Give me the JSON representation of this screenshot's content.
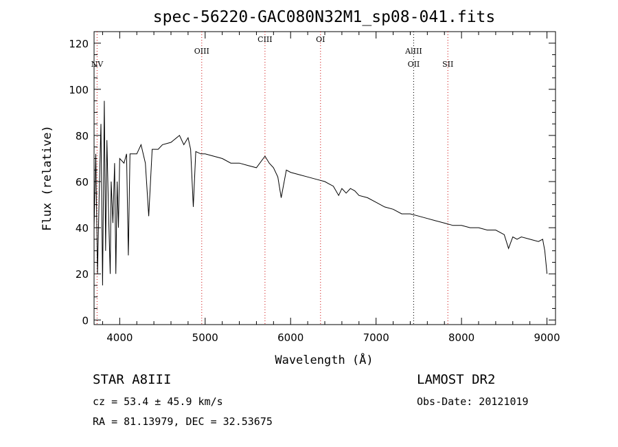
{
  "chart_data": {
    "type": "line",
    "title": "spec-56220-GAC080N32M1_sp08-041.fits",
    "xlabel": "Wavelength (Å)",
    "ylabel": "Flux (relative)",
    "xlim": [
      3700,
      9100
    ],
    "ylim": [
      -2,
      125
    ],
    "xticks": [
      4000,
      5000,
      6000,
      7000,
      8000,
      9000
    ],
    "yticks": [
      0,
      20,
      40,
      60,
      80,
      100,
      120
    ],
    "grid": false,
    "series": [
      {
        "x": [
          3700,
          3720,
          3740,
          3760,
          3780,
          3800,
          3820,
          3835,
          3850,
          3870,
          3889,
          3900,
          3920,
          3940,
          3955,
          3970,
          3985,
          4000,
          4050,
          4080,
          4101,
          4120,
          4200,
          4250,
          4300,
          4340,
          4380,
          4450,
          4500,
          4600,
          4700,
          4750,
          4800,
          4830,
          4861,
          4890,
          4950,
          5000,
          5100,
          5200,
          5300,
          5400,
          5500,
          5600,
          5700,
          5750,
          5800,
          5850,
          5890,
          5950,
          6000,
          6100,
          6200,
          6300,
          6400,
          6450,
          6500,
          6562,
          6600,
          6650,
          6700,
          6750,
          6800,
          6900,
          7000,
          7100,
          7200,
          7300,
          7400,
          7500,
          7600,
          7700,
          7800,
          7900,
          8000,
          8100,
          8200,
          8300,
          8400,
          8500,
          8550,
          8600,
          8650,
          8700,
          8800,
          8900,
          8950,
          8975,
          9000
        ],
        "y": [
          40,
          72,
          20,
          55,
          85,
          15,
          95,
          30,
          78,
          45,
          20,
          60,
          42,
          68,
          20,
          60,
          40,
          70,
          68,
          72,
          28,
          72,
          72,
          76,
          68,
          45,
          74,
          74,
          76,
          77,
          80,
          76,
          79,
          74,
          49,
          73,
          72,
          72,
          71,
          70,
          68,
          68,
          67,
          66,
          71,
          68,
          66,
          62,
          53,
          65,
          64,
          63,
          62,
          61,
          60,
          59,
          58,
          54,
          57,
          55,
          57,
          56,
          54,
          53,
          51,
          49,
          48,
          46,
          46,
          45,
          44,
          43,
          42,
          41,
          41,
          40,
          40,
          39,
          39,
          37,
          31,
          36,
          35,
          36,
          35,
          34,
          35,
          30,
          20
        ]
      }
    ],
    "lines": [
      {
        "label": "NV",
        "x": 3735,
        "color": "#cc0000",
        "row": 2
      },
      {
        "label": "OIII",
        "x": 4960,
        "color": "#cc0000",
        "row": 1
      },
      {
        "label": "CIII",
        "x": 5700,
        "color": "#cc0000",
        "row": 0
      },
      {
        "label": "OI",
        "x": 6350,
        "color": "#cc0000",
        "row": 0
      },
      {
        "label": "AlIII",
        "x": 7440,
        "color": "#000000",
        "row": 1
      },
      {
        "label": "OII",
        "x": 7440,
        "color": "#000000",
        "row": 2
      },
      {
        "label": "SII",
        "x": 7840,
        "color": "#cc0000",
        "row": 2
      }
    ]
  },
  "info": {
    "star_line": "STAR    A8III",
    "survey": "LAMOST DR2",
    "cz": "cz = 53.4 ± 45.9 km/s",
    "obs_date": "Obs-Date: 20121019",
    "coords": "RA =  81.13979, DEC =  32.53675"
  }
}
